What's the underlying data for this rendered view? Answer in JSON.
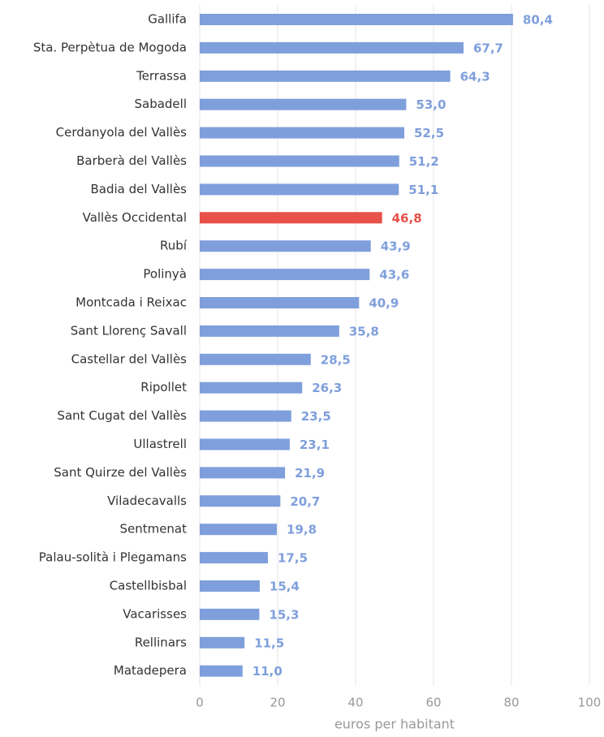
{
  "chart_data": {
    "type": "bar",
    "orientation": "horizontal",
    "x_label": "euros per habitant",
    "categories": [
      "Gallifa",
      "Sta. Perpètua de Mogoda",
      "Terrassa",
      "Sabadell",
      "Cerdanyola del Vallès",
      "Barberà del Vallès",
      "Badia del Vallès",
      "Vallès Occidental",
      "Rubí",
      "Polinyà",
      "Montcada i Reixac",
      "Sant Llorenç Savall",
      "Castellar del Vallès",
      "Ripollet",
      "Sant Cugat del Vallès",
      "Ullastrell",
      "Sant Quirze del Vallès",
      "Viladecavalls",
      "Sentmenat",
      "Palau-solità i Plegamans",
      "Castellbisbal",
      "Vacarisses",
      "Rellinars",
      "Matadepera"
    ],
    "values": [
      80.4,
      67.7,
      64.3,
      53.0,
      52.5,
      51.2,
      51.1,
      46.8,
      43.9,
      43.6,
      40.9,
      35.8,
      28.5,
      26.3,
      23.5,
      23.1,
      21.9,
      20.7,
      19.8,
      17.5,
      15.4,
      15.3,
      11.5,
      11.0
    ],
    "value_labels": [
      "80,4",
      "67,7",
      "64,3",
      "53,0",
      "52,5",
      "51,2",
      "51,1",
      "46,8",
      "43,9",
      "43,6",
      "40,9",
      "35,8",
      "28,5",
      "26,3",
      "23,5",
      "23,1",
      "21,9",
      "20,7",
      "19,8",
      "17,5",
      "15,4",
      "15,3",
      "11,5",
      "11,0"
    ],
    "colors": [
      "#7f9fdc",
      "#7f9fdc",
      "#7f9fdc",
      "#7f9fdc",
      "#7f9fdc",
      "#7f9fdc",
      "#7f9fdc",
      "#e8504a",
      "#7f9fdc",
      "#7f9fdc",
      "#7f9fdc",
      "#7f9fdc",
      "#7f9fdc",
      "#7f9fdc",
      "#7f9fdc",
      "#7f9fdc",
      "#7f9fdc",
      "#7f9fdc",
      "#7f9fdc",
      "#7f9fdc",
      "#7f9fdc",
      "#7f9fdc",
      "#7f9fdc",
      "#7f9fdc"
    ],
    "xlim": [
      0,
      100
    ],
    "xticks": [
      0,
      20,
      40,
      60,
      80,
      100
    ],
    "grid": true
  }
}
